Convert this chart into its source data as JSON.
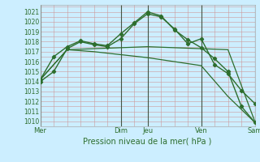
{
  "xlabel": "Pression niveau de la mer( hPa )",
  "background_color": "#cceeff",
  "grid_major_color": "#cc9999",
  "grid_minor_color": "#ddbbbb",
  "line_color": "#2d6e2d",
  "vline_color": "#445544",
  "ylim": [
    1009.5,
    1021.7
  ],
  "yticks": [
    1010,
    1011,
    1012,
    1013,
    1014,
    1015,
    1016,
    1017,
    1018,
    1019,
    1020,
    1021
  ],
  "xlim": [
    0,
    8.0
  ],
  "day_labels": [
    "Mer",
    "Dim",
    "Jeu",
    "Ven",
    "Sam"
  ],
  "day_positions": [
    0.0,
    3.0,
    4.0,
    6.0,
    8.0
  ],
  "series": [
    {
      "x": [
        0,
        0.5,
        1,
        1.5,
        2,
        2.5,
        3,
        3.5,
        4,
        4.5,
        5,
        5.5,
        6,
        6.5,
        7,
        7.5,
        8
      ],
      "y": [
        1014,
        1015,
        1017.3,
        1018,
        1017.7,
        1017.5,
        1018.3,
        1019.8,
        1020.8,
        1020.5,
        1019.3,
        1017.8,
        1018.3,
        1015.7,
        1014.8,
        1013.1,
        1011.8
      ],
      "marker": true,
      "lw": 1.0
    },
    {
      "x": [
        0,
        0.5,
        1,
        1.5,
        2,
        2.5,
        3,
        3.5,
        4,
        4.5,
        5,
        5.5,
        6,
        6.5,
        7,
        7.5,
        8
      ],
      "y": [
        1014.2,
        1016.5,
        1017.5,
        1018.1,
        1017.8,
        1017.6,
        1018.8,
        1019.9,
        1021.0,
        1020.6,
        1019.2,
        1018.2,
        1017.4,
        1016.3,
        1015.0,
        1011.5,
        1009.9
      ],
      "marker": true,
      "lw": 1.0
    },
    {
      "x": [
        0,
        1,
        2,
        3,
        4,
        5,
        6,
        7,
        8
      ],
      "y": [
        1014.2,
        1017.2,
        1017.3,
        1017.4,
        1017.5,
        1017.4,
        1017.3,
        1017.2,
        1010.0
      ],
      "marker": false,
      "lw": 0.9
    },
    {
      "x": [
        0,
        1,
        2,
        3,
        4,
        5,
        6,
        7,
        8
      ],
      "y": [
        1014.2,
        1017.2,
        1017.0,
        1016.7,
        1016.4,
        1016.0,
        1015.6,
        1012.5,
        1009.9
      ],
      "marker": false,
      "lw": 0.9
    }
  ]
}
